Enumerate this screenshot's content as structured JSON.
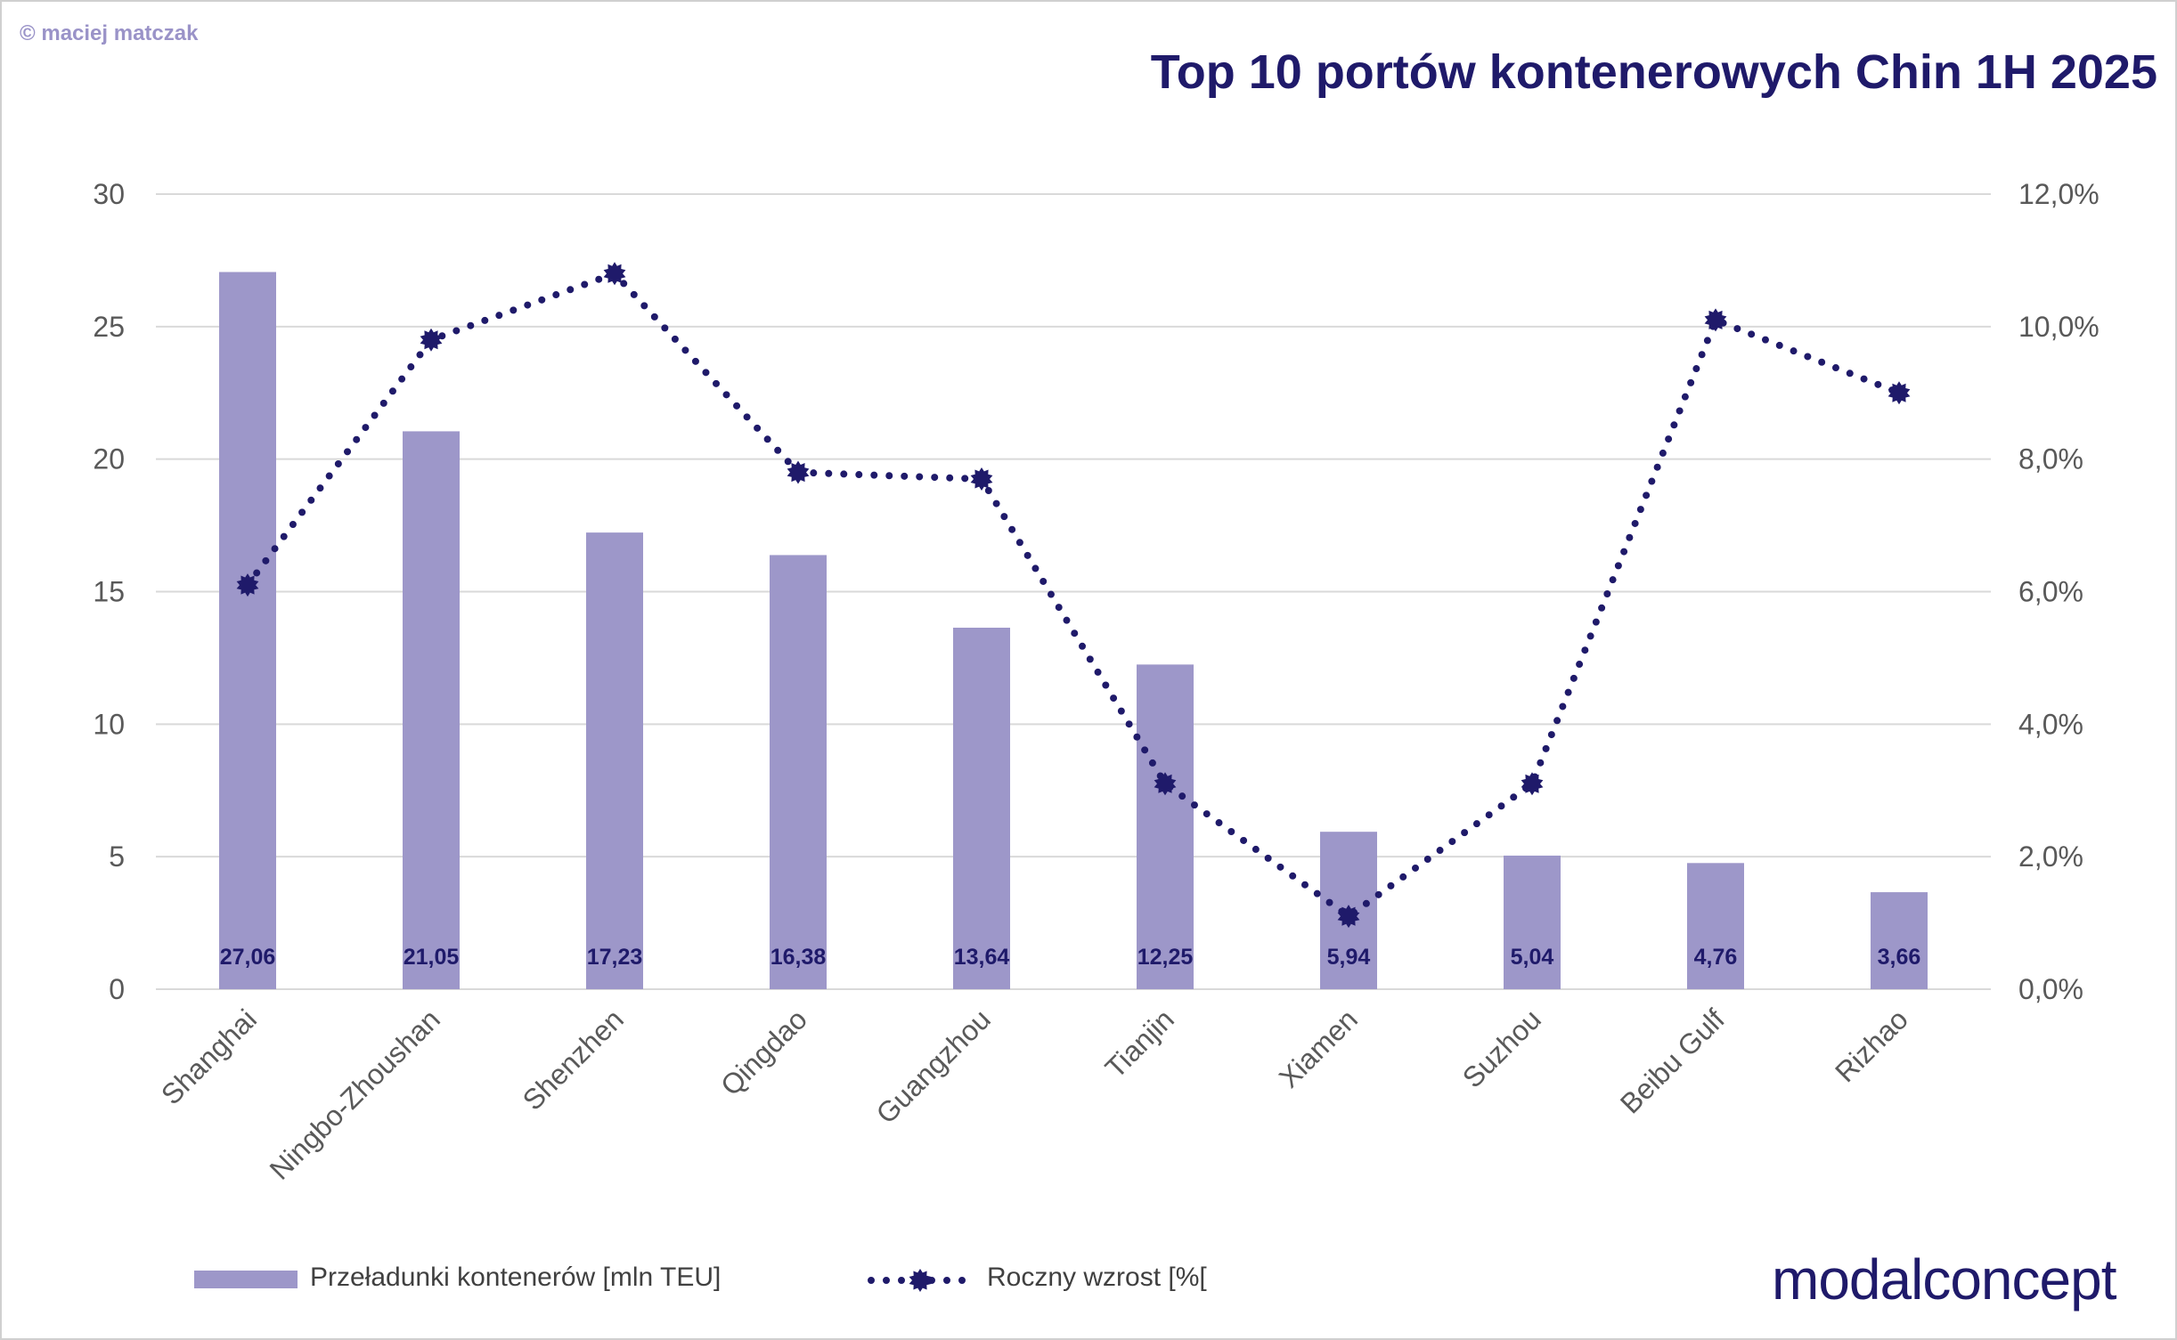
{
  "credit": "© maciej matczak",
  "brand": "modalconcept",
  "colors": {
    "bar": "#9d97c9",
    "line": "#1f1a6a",
    "grid": "#d9d9d9",
    "axis_text": "#595959",
    "title": "#1f1a6a"
  },
  "chart_data": {
    "type": "bar",
    "title": "Top 10 portów kontenerowych Chin 1H 2025",
    "categories": [
      "Shanghai",
      "Ningbo-Zhoushan",
      "Shenzhen",
      "Qingdao",
      "Guangzhou",
      "Tianjin",
      "Xiamen",
      "Suzhou",
      "Beibu Gulf",
      "Rizhao"
    ],
    "series": [
      {
        "name": "Przeładunki kontenerów [mln TEU]",
        "type": "bar",
        "axis": "left",
        "values": [
          27.06,
          21.05,
          17.23,
          16.38,
          13.64,
          12.25,
          5.94,
          5.04,
          4.76,
          3.66
        ],
        "data_labels": [
          "27,06",
          "21,05",
          "17,23",
          "16,38",
          "13,64",
          "12,25",
          "5,94",
          "5,04",
          "4,76",
          "3,66"
        ]
      },
      {
        "name": "Roczny wzrost [%[",
        "type": "line",
        "style": "dotted",
        "axis": "right",
        "values": [
          6.1,
          9.8,
          10.8,
          7.8,
          7.7,
          3.1,
          1.1,
          3.1,
          10.1,
          9.0
        ]
      }
    ],
    "y_left": {
      "min": 0,
      "max": 30,
      "ticks": [
        0,
        5,
        10,
        15,
        20,
        25,
        30
      ],
      "tick_labels": [
        "0",
        "5",
        "10",
        "15",
        "20",
        "25",
        "30"
      ]
    },
    "y_right": {
      "min": 0,
      "max": 12,
      "ticks": [
        0,
        2,
        4,
        6,
        8,
        10,
        12
      ],
      "tick_labels": [
        "0,0%",
        "2,0%",
        "4,0%",
        "6,0%",
        "8,0%",
        "10,0%",
        "12,0%"
      ]
    },
    "grid": true,
    "legend": [
      "Przeładunki kontenerów [mln TEU]",
      "Roczny wzrost [%["
    ],
    "legend_position": "bottom-left"
  }
}
